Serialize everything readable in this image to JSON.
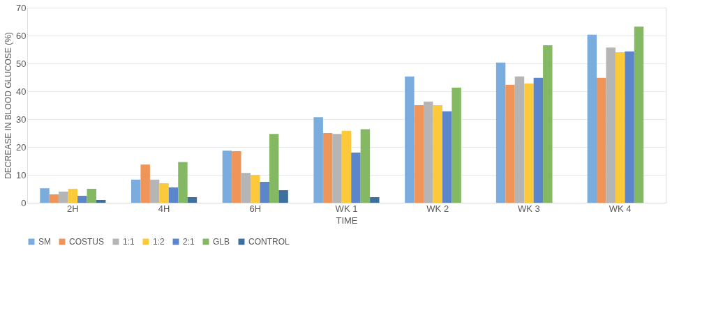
{
  "chart_data": {
    "type": "bar",
    "xlabel": "TIME",
    "ylabel": "DECREASE IN BLOOD GLUCOSE (%)",
    "categories": [
      "2H",
      "4H",
      "6H",
      "WK 1",
      "WK 2",
      "WK 3",
      "WK 4"
    ],
    "series": [
      {
        "name": "SM",
        "color": "#7aaddd",
        "values": [
          5.2,
          8.3,
          18.7,
          30.7,
          45.3,
          50.3,
          60.3
        ]
      },
      {
        "name": "COSTUS",
        "color": "#f0955a",
        "values": [
          3,
          13.7,
          18.5,
          25,
          35,
          42.3,
          44.8
        ]
      },
      {
        "name": "1:1",
        "color": "#b5b5b5",
        "values": [
          4,
          8.3,
          10.7,
          24.7,
          36.3,
          45.3,
          55.7
        ]
      },
      {
        "name": "1:2",
        "color": "#fcc93a",
        "values": [
          5,
          7,
          10,
          25.8,
          35,
          42.8,
          54
        ]
      },
      {
        "name": "2:1",
        "color": "#5b86cc",
        "values": [
          2.5,
          5.5,
          7.5,
          18,
          32.8,
          44.8,
          54.3
        ]
      },
      {
        "name": "GLB",
        "color": "#84b863",
        "values": [
          5,
          14.6,
          24.7,
          26.4,
          41.3,
          56.5,
          63.2
        ]
      },
      {
        "name": "CONTROL",
        "color": "#3f6f9c",
        "values": [
          1,
          2,
          4.5,
          2,
          null,
          null,
          null
        ]
      }
    ],
    "ylim": [
      0,
      70
    ],
    "yticks": [
      0,
      10,
      20,
      30,
      40,
      50,
      60,
      70
    ],
    "grid": "y",
    "legend": "bottom"
  }
}
